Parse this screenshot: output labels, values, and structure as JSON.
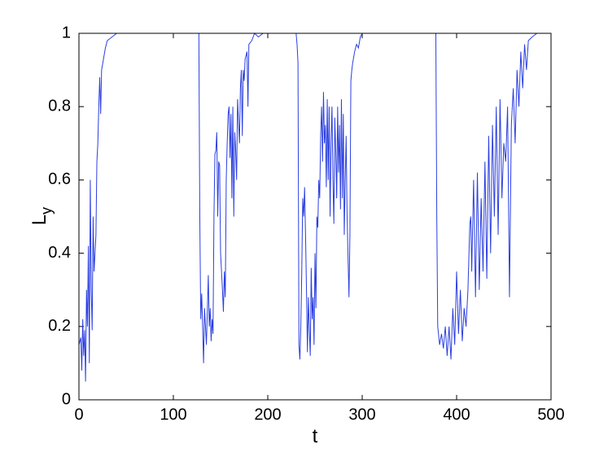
{
  "chart_data": {
    "type": "line",
    "xlabel": "t",
    "ylabel": {
      "text": "L",
      "subscript": "y"
    },
    "xlim": [
      0,
      500
    ],
    "xticks": [
      0,
      100,
      200,
      300,
      400,
      500
    ],
    "ylim": [
      0,
      1
    ],
    "yticks": [
      0,
      0.2,
      0.4,
      0.6,
      0.8,
      1
    ],
    "grid": false,
    "series": [
      {
        "color": "#2b3fe0",
        "x": [
          0,
          2,
          3,
          4,
          5,
          6,
          7,
          8,
          9,
          10,
          11,
          12,
          13,
          14,
          15,
          16,
          18,
          19,
          20,
          21,
          22,
          23,
          24,
          26,
          28,
          30,
          35,
          40,
          45,
          127,
          128,
          129,
          130,
          131,
          132,
          133,
          135,
          137,
          138,
          139,
          140,
          141,
          142,
          143,
          144,
          145,
          146,
          147,
          148,
          149,
          150,
          152,
          153,
          154,
          155,
          156,
          157,
          158,
          159,
          160,
          161,
          162,
          163,
          164,
          165,
          166,
          167,
          168,
          170,
          171,
          172,
          173,
          174,
          175,
          176,
          178,
          179,
          180,
          183,
          186,
          190,
          195,
          200,
          230,
          231,
          232,
          233,
          234,
          235,
          236,
          237,
          238,
          239,
          240,
          241,
          242,
          243,
          244,
          245,
          246,
          247,
          248,
          249,
          250,
          251,
          252,
          253,
          254,
          255,
          256,
          257,
          258,
          259,
          260,
          261,
          262,
          263,
          264,
          265,
          266,
          267,
          268,
          269,
          270,
          271,
          272,
          273,
          274,
          275,
          276,
          277,
          278,
          279,
          280,
          281,
          282,
          283,
          284,
          286,
          287,
          288,
          289,
          290,
          292,
          294,
          296,
          298,
          300,
          378,
          379,
          380,
          382,
          384,
          386,
          388,
          390,
          392,
          394,
          396,
          398,
          400,
          402,
          404,
          406,
          408,
          410,
          412,
          414,
          415,
          416,
          418,
          420,
          422,
          424,
          426,
          428,
          430,
          432,
          434,
          436,
          438,
          440,
          442,
          444,
          446,
          448,
          450,
          452,
          454,
          456,
          458,
          460,
          462,
          464,
          466,
          468,
          470,
          472,
          474,
          476,
          480,
          485,
          490,
          495,
          500
        ],
        "values": [
          0.15,
          0.17,
          0.08,
          0.22,
          0.12,
          0.19,
          0.05,
          0.3,
          0.2,
          0.42,
          0.1,
          0.6,
          0.3,
          0.19,
          0.5,
          0.35,
          0.45,
          0.65,
          0.7,
          0.8,
          0.88,
          0.78,
          0.9,
          0.93,
          0.96,
          0.98,
          0.99,
          1,
          1,
          1,
          0.5,
          0.22,
          0.29,
          0.2,
          0.1,
          0.25,
          0.15,
          0.34,
          0.2,
          0.25,
          0.16,
          0.22,
          0.18,
          0.5,
          0.67,
          0.68,
          0.73,
          0.5,
          0.65,
          0.64,
          0.4,
          0.3,
          0.24,
          0.35,
          0.28,
          0.6,
          0.7,
          0.78,
          0.8,
          0.66,
          0.78,
          0.55,
          0.8,
          0.5,
          0.73,
          0.68,
          0.6,
          0.82,
          0.7,
          0.85,
          0.9,
          0.72,
          0.9,
          0.87,
          0.93,
          0.95,
          0.8,
          0.97,
          0.98,
          1,
          0.99,
          1,
          1,
          1,
          0.97,
          0.92,
          0.15,
          0.11,
          0.2,
          0.35,
          0.55,
          0.5,
          0.58,
          0.45,
          0.3,
          0.13,
          0.28,
          0.19,
          0.12,
          0.36,
          0.22,
          0.28,
          0.15,
          0.4,
          0.25,
          0.5,
          0.47,
          0.6,
          0.55,
          0.72,
          0.8,
          0.65,
          0.84,
          0.7,
          0.75,
          0.58,
          0.82,
          0.6,
          0.8,
          0.5,
          0.7,
          0.8,
          0.6,
          0.48,
          0.77,
          0.68,
          0.55,
          0.8,
          0.62,
          0.75,
          0.52,
          0.82,
          0.55,
          0.78,
          0.45,
          0.6,
          0.72,
          0.5,
          0.28,
          0.45,
          0.87,
          0.9,
          0.92,
          0.95,
          0.97,
          0.96,
          0.99,
          1,
          1,
          0.5,
          0.2,
          0.15,
          0.18,
          0.14,
          0.2,
          0.12,
          0.2,
          0.11,
          0.25,
          0.15,
          0.35,
          0.18,
          0.3,
          0.16,
          0.25,
          0.2,
          0.3,
          0.48,
          0.5,
          0.35,
          0.6,
          0.28,
          0.62,
          0.3,
          0.55,
          0.35,
          0.65,
          0.33,
          0.72,
          0.4,
          0.75,
          0.5,
          0.8,
          0.45,
          0.82,
          0.55,
          0.7,
          0.65,
          0.8,
          0.28,
          0.75,
          0.85,
          0.7,
          0.9,
          0.8,
          0.95,
          0.85,
          0.97,
          0.9,
          0.98,
          0.99,
          1,
          1,
          1,
          1
        ]
      }
    ]
  }
}
